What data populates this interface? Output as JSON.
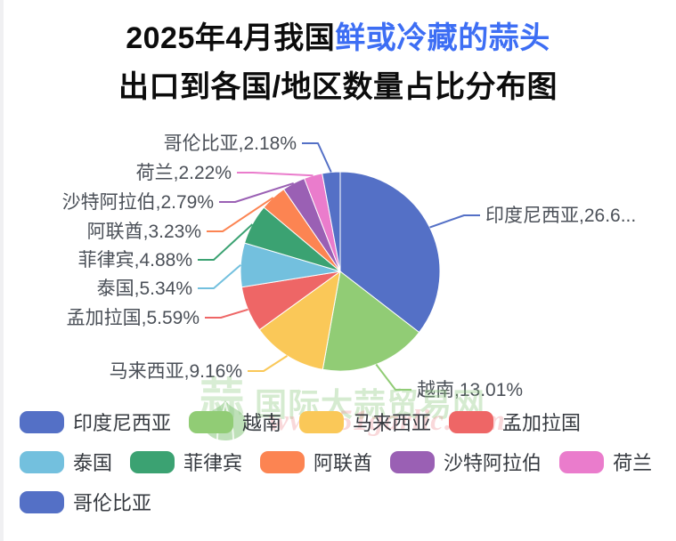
{
  "title": {
    "line1_prefix": "2025年4月我国",
    "line1_highlight": "鲜或冷藏的蒜头",
    "line2": "出口到各国/地区数量占比分布图"
  },
  "chart_data": {
    "type": "pie",
    "title": "2025年4月我国鲜或冷藏的蒜头出口到各国/地区数量占比分布图",
    "unit": "%",
    "start_angle": "12-o-clock, clockwise",
    "legend_position": "bottom",
    "displayed_total_percent": 75.0,
    "series": [
      {
        "id": "indonesia",
        "name": "印度尼西亚",
        "value": 26.6,
        "label": "印度尼西亚,26.6...",
        "color": "#5470C6"
      },
      {
        "id": "vietnam",
        "name": "越南",
        "value": 13.01,
        "label": "越南,13.01%",
        "color": "#91CC75"
      },
      {
        "id": "malaysia",
        "name": "马来西亚",
        "value": 9.16,
        "label": "马来西亚,9.16%",
        "color": "#FAC858"
      },
      {
        "id": "bangladesh",
        "name": "孟加拉国",
        "value": 5.59,
        "label": "孟加拉国,5.59%",
        "color": "#EE6666"
      },
      {
        "id": "thailand",
        "name": "泰国",
        "value": 5.34,
        "label": "泰国,5.34%",
        "color": "#73C0DE"
      },
      {
        "id": "philippines",
        "name": "菲律宾",
        "value": 4.88,
        "label": "菲律宾,4.88%",
        "color": "#3BA272"
      },
      {
        "id": "uae",
        "name": "阿联酋",
        "value": 3.23,
        "label": "阿联酋,3.23%",
        "color": "#FC8452"
      },
      {
        "id": "saudi-arabia",
        "name": "沙特阿拉伯",
        "value": 2.79,
        "label": "沙特阿拉伯,2.79%",
        "color": "#9A60B4"
      },
      {
        "id": "netherlands",
        "name": "荷兰",
        "value": 2.22,
        "label": "荷兰,2.22%",
        "color": "#EA7CCC"
      },
      {
        "id": "colombia",
        "name": "哥伦比亚",
        "value": 2.18,
        "label": "哥伦比亚,2.18%",
        "color": "#5470C6"
      }
    ]
  },
  "watermark": {
    "char": "蒜",
    "site_name": "国际大蒜贸易网",
    "url": "www.51garlic.com"
  }
}
